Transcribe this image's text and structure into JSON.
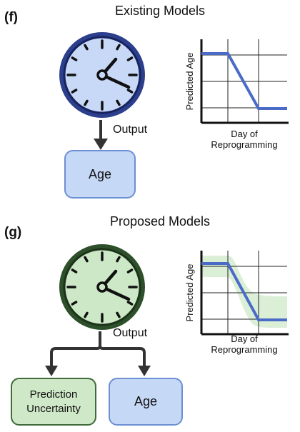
{
  "panels": [
    {
      "letter": "(f)",
      "title": "Existing Models",
      "output_label": "Output",
      "boxes": [
        "Age"
      ],
      "chart": {
        "ylabel": "Predicted Age",
        "xlabel_line1": "Day of",
        "xlabel_line2": "Reprogramming"
      },
      "colors": {
        "clock_face": "#c8d8f7",
        "clock_ring": "#2c3f8c",
        "line": "#4a6cc8"
      },
      "clock_icon": "clock-icon"
    },
    {
      "letter": "(g)",
      "title": "Proposed Models",
      "output_label": "Output",
      "boxes": [
        "Prediction Uncertainty",
        "Age"
      ],
      "chart": {
        "ylabel": "Predicted Age",
        "xlabel_line1": "Day of",
        "xlabel_line2": "Reprogramming"
      },
      "colors": {
        "clock_face": "#cde8c6",
        "clock_ring": "#2d4f2a",
        "line": "#4a6cc8",
        "band": "#d5ecd0"
      },
      "clock_icon": "clock-icon"
    }
  ]
}
